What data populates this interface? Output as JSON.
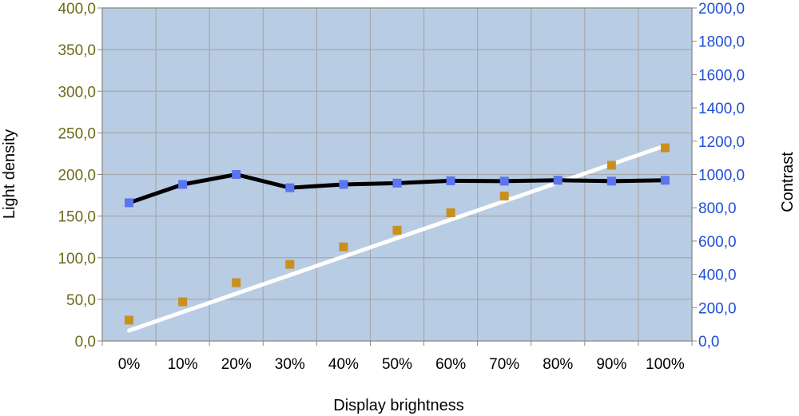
{
  "chart_data": {
    "type": "line",
    "xlabel": "Display brightness",
    "ylabel_left": "Light density",
    "ylabel_right": "Contrast",
    "categories": [
      "0%",
      "10%",
      "20%",
      "30%",
      "40%",
      "50%",
      "60%",
      "70%",
      "80%",
      "90%",
      "100%"
    ],
    "y_left": {
      "min": 0,
      "max": 400,
      "step": 50,
      "tick_labels": [
        "0,0",
        "50,0",
        "100,0",
        "150,0",
        "200,0",
        "250,0",
        "300,0",
        "350,0",
        "400,0"
      ]
    },
    "y_right": {
      "min": 0,
      "max": 2000,
      "step": 200,
      "tick_labels": [
        "0,0",
        "200,0",
        "400,0",
        "600,0",
        "800,0",
        "1000,0",
        "1200,0",
        "1400,0",
        "1600,0",
        "1800,0",
        "2000,0"
      ]
    },
    "series": [
      {
        "axis": "left",
        "line_color": "#ffffff",
        "marker_color": "#c8911e",
        "values": [
          25,
          47,
          70,
          92,
          113,
          133,
          154,
          174,
          193,
          211,
          232
        ],
        "trend": [
          12.5,
          234.5
        ]
      },
      {
        "axis": "right",
        "line_color": "#000000",
        "marker_color": "#5b74f0",
        "values": [
          830,
          940,
          1000,
          920,
          940,
          948,
          962,
          960,
          965,
          960,
          965
        ]
      }
    ],
    "grid": true,
    "plot_background": "#b8cce4",
    "grid_color": "#a8a8a8"
  }
}
